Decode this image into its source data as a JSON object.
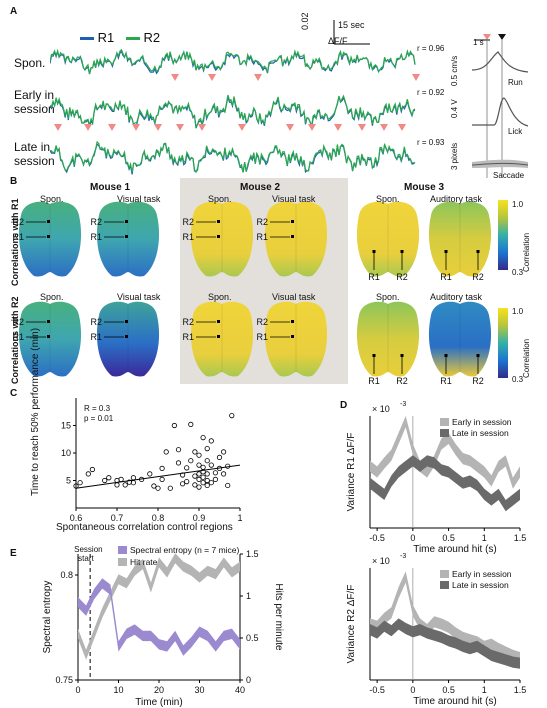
{
  "panel_labels": {
    "a": "A",
    "b": "B",
    "c": "C",
    "d": "D",
    "e": "E"
  },
  "colors": {
    "r1": "#1f5fb0",
    "r2": "#2aa84a",
    "marker": "#f08a86",
    "entropy": "#9b8ad0",
    "hit": "#b4b4b4",
    "early": "#b4b4b4",
    "late": "#6a6a6a",
    "gray_panel": "#e3e0dc"
  },
  "a": {
    "legend": [
      "R1",
      "R2"
    ],
    "scale_dff_value": "0.02",
    "scale_dff_unit": "ΔF/F",
    "scale_time": "15 sec",
    "rows": [
      {
        "label_lines": [
          "Spon."
        ],
        "r": "r = 0.96"
      },
      {
        "label_lines": [
          "Early in",
          "session"
        ],
        "r": "r = 0.92"
      },
      {
        "label_lines": [
          "Late in",
          "session"
        ],
        "r": "r = 0.93"
      }
    ],
    "side": {
      "time": "1 s",
      "run_scale": "0.5 cm/s",
      "run": "Run",
      "lick_scale": "0.4 V",
      "lick": "Lick",
      "saccade_scale": "3 pixels",
      "saccade": "Saccade"
    }
  },
  "b": {
    "mice": [
      "Mouse 1",
      "Mouse 2",
      "Mouse 3"
    ],
    "row_labels": [
      "Correlations with R1",
      "Correlations with R2"
    ],
    "cond": {
      "spon": "Spon.",
      "visual": "Visual task",
      "auditory": "Auditory task"
    },
    "roi": [
      "R1",
      "R2"
    ],
    "colorbar": {
      "max": "1.0",
      "min": "0.3",
      "label": "Correlation"
    }
  },
  "c": {
    "stats_r": "R = 0.3",
    "stats_p": "p = 0.01",
    "chart_data": {
      "type": "scatter",
      "xlabel": "Spontaneous correlation control regions",
      "ylabel": "Time to reach 50% performance (min)",
      "xlim": [
        0.6,
        1.0
      ],
      "ylim": [
        0,
        20
      ],
      "xticks": [
        "0.6",
        "0.7",
        "0.8",
        "0.9",
        "1"
      ],
      "yticks": [
        "5",
        "10",
        "15"
      ],
      "points": [
        [
          0.6,
          4
        ],
        [
          0.61,
          4.6
        ],
        [
          0.63,
          6.2
        ],
        [
          0.64,
          7
        ],
        [
          0.67,
          5
        ],
        [
          0.68,
          5.5
        ],
        [
          0.7,
          4.2
        ],
        [
          0.7,
          5
        ],
        [
          0.71,
          5.2
        ],
        [
          0.72,
          4.2
        ],
        [
          0.73,
          4.7
        ],
        [
          0.74,
          4.6
        ],
        [
          0.74,
          5.5
        ],
        [
          0.76,
          5.2
        ],
        [
          0.78,
          6.2
        ],
        [
          0.79,
          4
        ],
        [
          0.8,
          3.6
        ],
        [
          0.81,
          5.2
        ],
        [
          0.81,
          7.2
        ],
        [
          0.82,
          10.2
        ],
        [
          0.83,
          3.6
        ],
        [
          0.84,
          15
        ],
        [
          0.85,
          8.2
        ],
        [
          0.85,
          10.6
        ],
        [
          0.86,
          4.4
        ],
        [
          0.86,
          6
        ],
        [
          0.87,
          4.8
        ],
        [
          0.87,
          7.3
        ],
        [
          0.88,
          8.6
        ],
        [
          0.88,
          15.2
        ],
        [
          0.89,
          4.2
        ],
        [
          0.89,
          5.8
        ],
        [
          0.89,
          10.2
        ],
        [
          0.9,
          3.8
        ],
        [
          0.9,
          5.2
        ],
        [
          0.9,
          6.2
        ],
        [
          0.9,
          7.8
        ],
        [
          0.9,
          9.6
        ],
        [
          0.91,
          4.6
        ],
        [
          0.91,
          5.6
        ],
        [
          0.91,
          6.6
        ],
        [
          0.91,
          7.4
        ],
        [
          0.91,
          12.8
        ],
        [
          0.92,
          4.1
        ],
        [
          0.92,
          5
        ],
        [
          0.92,
          6.2
        ],
        [
          0.92,
          8.6
        ],
        [
          0.92,
          10.8
        ],
        [
          0.93,
          4.6
        ],
        [
          0.93,
          7.8
        ],
        [
          0.93,
          12.2
        ],
        [
          0.94,
          5.2
        ],
        [
          0.94,
          6.4
        ],
        [
          0.95,
          7.2
        ],
        [
          0.95,
          9.2
        ],
        [
          0.96,
          6.2
        ],
        [
          0.96,
          10.2
        ],
        [
          0.97,
          4.1
        ],
        [
          0.97,
          7.6
        ],
        [
          0.98,
          16.8
        ]
      ],
      "fit": [
        [
          0.6,
          3.6
        ],
        [
          1.0,
          7.8
        ]
      ]
    }
  },
  "d": {
    "legend": [
      "Early in session",
      "Late in session"
    ],
    "xlabel": "Time around hit (s)",
    "xticks": [
      "-0.5",
      "0",
      "0.5",
      "1",
      "1.5"
    ],
    "chart_data": [
      {
        "type": "line",
        "ylabel": "Variance R1 ΔF/F",
        "exponent": "× 10",
        "exp_power": "-3",
        "x": [
          -0.6,
          -0.5,
          -0.4,
          -0.3,
          -0.2,
          -0.1,
          0,
          0.1,
          0.2,
          0.3,
          0.4,
          0.5,
          0.6,
          0.7,
          0.8,
          0.9,
          1.0,
          1.1,
          1.2,
          1.3,
          1.4,
          1.5
        ],
        "series": [
          {
            "name": "Early in session",
            "values": [
              0.55,
              0.5,
              0.58,
              0.65,
              0.8,
              0.95,
              0.7,
              0.55,
              0.5,
              0.6,
              0.75,
              0.8,
              0.7,
              0.62,
              0.6,
              0.55,
              0.5,
              0.42,
              0.55,
              0.6,
              0.4,
              0.5
            ]
          },
          {
            "name": "Late in session",
            "values": [
              0.4,
              0.35,
              0.3,
              0.42,
              0.5,
              0.55,
              0.6,
              0.55,
              0.6,
              0.58,
              0.52,
              0.5,
              0.45,
              0.4,
              0.42,
              0.38,
              0.3,
              0.25,
              0.3,
              0.2,
              0.25,
              0.3
            ]
          }
        ]
      },
      {
        "type": "line",
        "ylabel": "Variance R2 ΔF/F",
        "exponent": "× 10",
        "exp_power": "-3",
        "x": [
          -0.6,
          -0.5,
          -0.4,
          -0.3,
          -0.2,
          -0.1,
          0,
          0.1,
          0.2,
          0.3,
          0.4,
          0.5,
          0.6,
          0.7,
          0.8,
          0.9,
          1.0,
          1.1,
          1.2,
          1.3,
          1.4,
          1.5
        ],
        "series": [
          {
            "name": "Early in session",
            "values": [
              0.5,
              0.48,
              0.55,
              0.6,
              0.78,
              0.92,
              0.62,
              0.5,
              0.45,
              0.52,
              0.5,
              0.47,
              0.42,
              0.38,
              0.36,
              0.34,
              0.3,
              0.32,
              0.28,
              0.25,
              0.22,
              0.2
            ]
          },
          {
            "name": "Late in session",
            "values": [
              0.45,
              0.42,
              0.48,
              0.44,
              0.5,
              0.46,
              0.43,
              0.45,
              0.42,
              0.4,
              0.38,
              0.35,
              0.33,
              0.3,
              0.28,
              0.3,
              0.26,
              0.22,
              0.2,
              0.18,
              0.16,
              0.15
            ]
          }
        ]
      }
    ]
  },
  "e": {
    "session_start": "Session start",
    "legend": [
      "Spectral entropy (n = 7 mice)",
      "Hit rate"
    ],
    "chart_data": {
      "type": "line",
      "xlabel": "Time (min)",
      "ylabel_left": "Spectral entropy",
      "ylabel_right": "Hits per minute",
      "xticks": [
        "0",
        "10",
        "20",
        "30",
        "40"
      ],
      "yticks_left": [
        "0.75",
        "0.8"
      ],
      "yticks_right": [
        "0",
        "0.5",
        "1",
        "1.5"
      ],
      "x": [
        0,
        2,
        4,
        6,
        8,
        10,
        12,
        14,
        16,
        18,
        20,
        22,
        24,
        26,
        28,
        30,
        32,
        34,
        36,
        38,
        40
      ],
      "series": [
        {
          "name": "Spectral entropy (n = 7 mice)",
          "values": [
            0.787,
            0.783,
            0.791,
            0.796,
            0.793,
            0.766,
            0.772,
            0.774,
            0.771,
            0.771,
            0.767,
            0.766,
            0.771,
            0.764,
            0.768,
            0.773,
            0.771,
            0.766,
            0.771,
            0.772,
            0.767
          ]
        },
        {
          "name": "Hit rate",
          "values": [
            0.55,
            0.3,
            0.55,
            0.8,
            1.0,
            1.2,
            1.15,
            1.3,
            1.38,
            1.1,
            1.4,
            1.28,
            1.45,
            1.35,
            1.3,
            1.22,
            1.3,
            1.26,
            1.4,
            1.28,
            1.35
          ]
        }
      ]
    }
  }
}
